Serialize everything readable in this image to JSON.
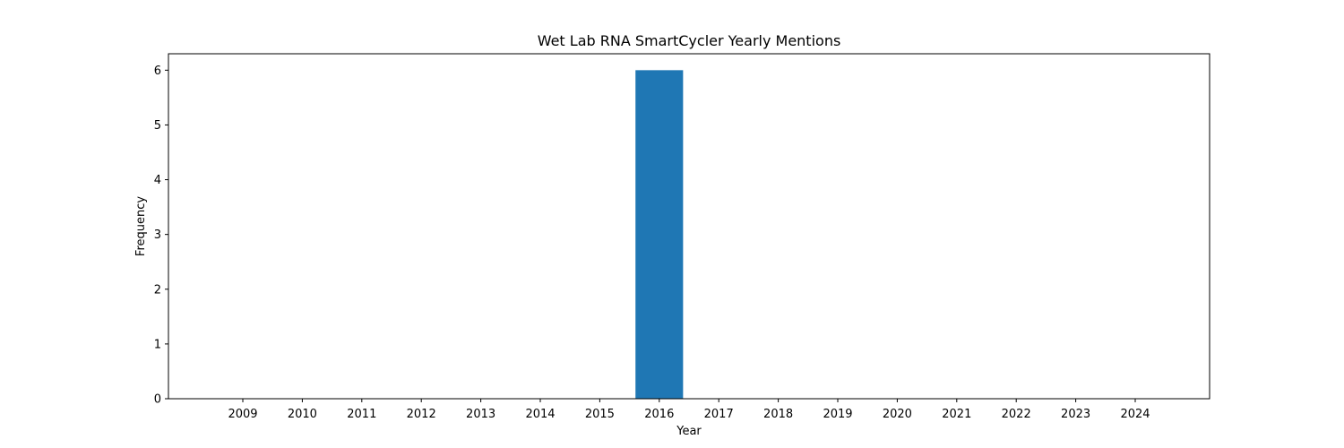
{
  "chart_data": {
    "type": "bar",
    "title": "Wet Lab RNA SmartCycler Yearly Mentions",
    "xlabel": "Year",
    "ylabel": "Frequency",
    "categories": [
      "2009",
      "2010",
      "2011",
      "2012",
      "2013",
      "2014",
      "2015",
      "2016",
      "2017",
      "2018",
      "2019",
      "2020",
      "2021",
      "2022",
      "2023",
      "2024"
    ],
    "values": [
      0,
      0,
      0,
      0,
      0,
      0,
      0,
      6,
      0,
      0,
      0,
      0,
      0,
      0,
      0,
      0
    ],
    "ylim": [
      0,
      6.3
    ],
    "yticks": [
      0,
      1,
      2,
      3,
      4,
      5,
      6
    ],
    "grid": false,
    "colors": {
      "bar": "#1f77b4",
      "axes": "#000000",
      "background": "#ffffff"
    }
  }
}
